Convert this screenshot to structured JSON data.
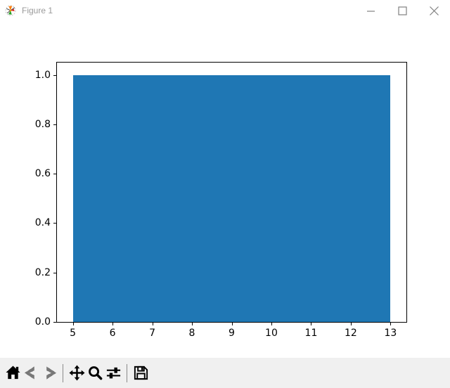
{
  "window": {
    "title": "Figure 1",
    "icon": "matplotlib-logo",
    "controls": [
      {
        "id": "minimize"
      },
      {
        "id": "maximize"
      },
      {
        "id": "close"
      }
    ]
  },
  "chart_data": {
    "type": "bar",
    "title": "",
    "xlabel": "",
    "ylabel": "",
    "bars": [
      {
        "x_start": 5,
        "x_end": 13,
        "height": 1.0
      }
    ],
    "xlim": [
      4.6,
      13.4
    ],
    "ylim": [
      0,
      1.05
    ],
    "xticks": [
      "5",
      "6",
      "7",
      "8",
      "9",
      "10",
      "11",
      "12",
      "13"
    ],
    "yticks": [
      "0.0",
      "0.2",
      "0.4",
      "0.6",
      "0.8",
      "1.0"
    ],
    "bar_color": "#1f77b4",
    "grid": false,
    "legend": null
  },
  "toolbar": {
    "tools": [
      {
        "id": "home",
        "enabled": true
      },
      {
        "id": "back",
        "enabled": false
      },
      {
        "id": "forward",
        "enabled": false
      },
      {
        "id": "pan",
        "enabled": true
      },
      {
        "id": "zoom",
        "enabled": true
      },
      {
        "id": "configure-subplots",
        "enabled": true
      },
      {
        "id": "save",
        "enabled": true
      }
    ],
    "status_text": ""
  },
  "colors": {
    "bar": "#1f77b4",
    "titlebar_bg": "#ffffff",
    "title_text": "#9a9a9a",
    "canvas_bg": "#ffffff",
    "toolbar_bg": "#f0f0f0",
    "control_glyph": "#808080"
  }
}
